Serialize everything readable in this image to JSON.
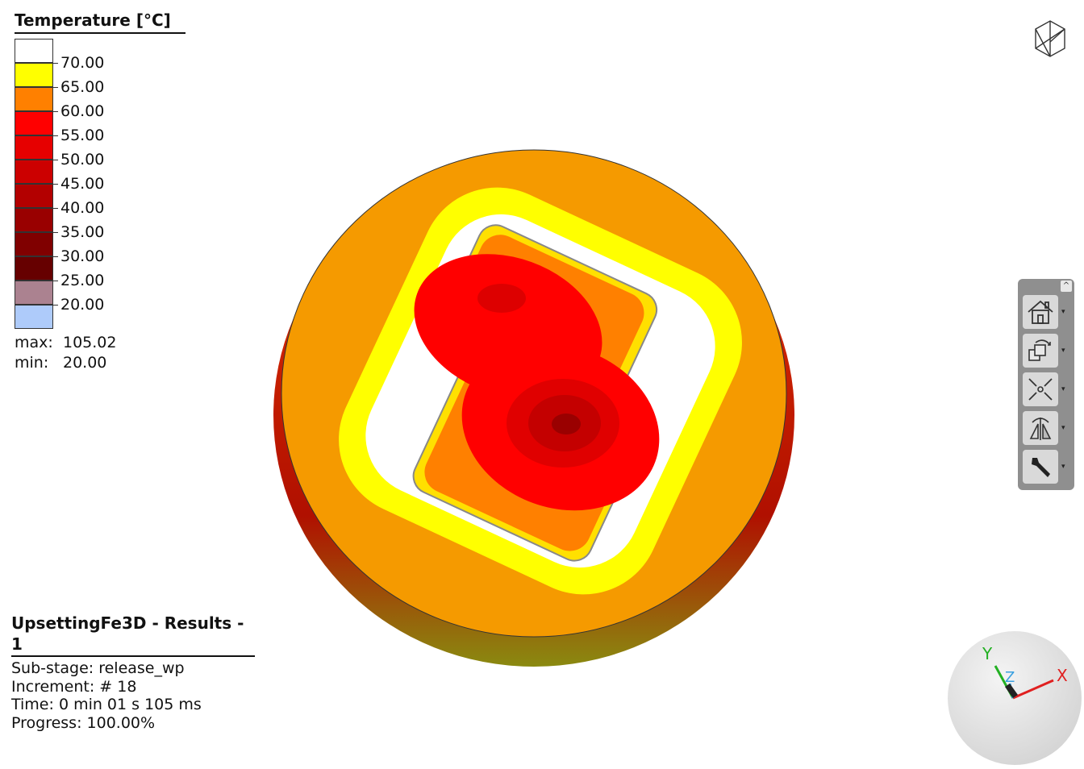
{
  "legend": {
    "title": "Temperature [°C]",
    "ticks": [
      "70.00",
      "65.00",
      "60.00",
      "55.00",
      "50.00",
      "45.00",
      "40.00",
      "35.00",
      "30.00",
      "25.00",
      "20.00"
    ],
    "colors": [
      "#ffffff",
      "#ffff00",
      "#ff8000",
      "#ff0000",
      "#e60000",
      "#cc0000",
      "#b30000",
      "#990000",
      "#800000",
      "#660000",
      "#ab8290",
      "#aecbfa"
    ],
    "max_label": "max:",
    "max_value": "105.02",
    "min_label": "min:",
    "min_value": "20.00"
  },
  "info": {
    "title": "UpsettingFe3D - Results - 1",
    "lines": [
      "Sub-stage: release_wp",
      "Increment: # 18",
      "Time: 0 min 01 s 105 ms",
      "Progress: 100.00%"
    ]
  },
  "toolbar": {
    "collapse": "^",
    "buttons": [
      "home-view-icon",
      "rotate-views-icon",
      "fit-to-screen-icon",
      "mirror-symmetry-icon",
      "settings-wrench-icon"
    ],
    "dropdown": "▾"
  },
  "axes": {
    "x": "X",
    "y": "Y",
    "z": "Z",
    "x_color": "#e02020",
    "y_color": "#22b022",
    "z_color": "#3aa0e0"
  }
}
